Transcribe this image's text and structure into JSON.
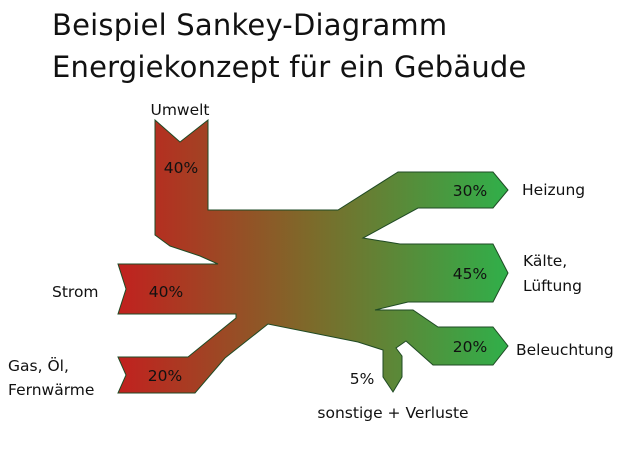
{
  "title": {
    "line1": "Beispiel Sankey-Diagramm",
    "line2": "Energiekonzept für ein Gebäude"
  },
  "inputs": [
    {
      "label_lines": [
        "Umwelt"
      ],
      "percent": "40%"
    },
    {
      "label_lines": [
        "Strom"
      ],
      "percent": "40%"
    },
    {
      "label_lines": [
        "Gas, Öl,",
        "Fernwärme"
      ],
      "percent": "20%"
    }
  ],
  "outputs": [
    {
      "label_lines": [
        "Heizung"
      ],
      "percent": "30%"
    },
    {
      "label_lines": [
        "Kälte,",
        "Lüftung"
      ],
      "percent": "45%"
    },
    {
      "label_lines": [
        "Beleuchtung"
      ],
      "percent": "20%"
    },
    {
      "label_lines": [
        "sonstige + Verluste"
      ],
      "percent": "5%"
    }
  ],
  "colors": {
    "inflow": "#c41e1e",
    "outflow": "#2fb04a",
    "stroke": "#1f4a24"
  }
}
